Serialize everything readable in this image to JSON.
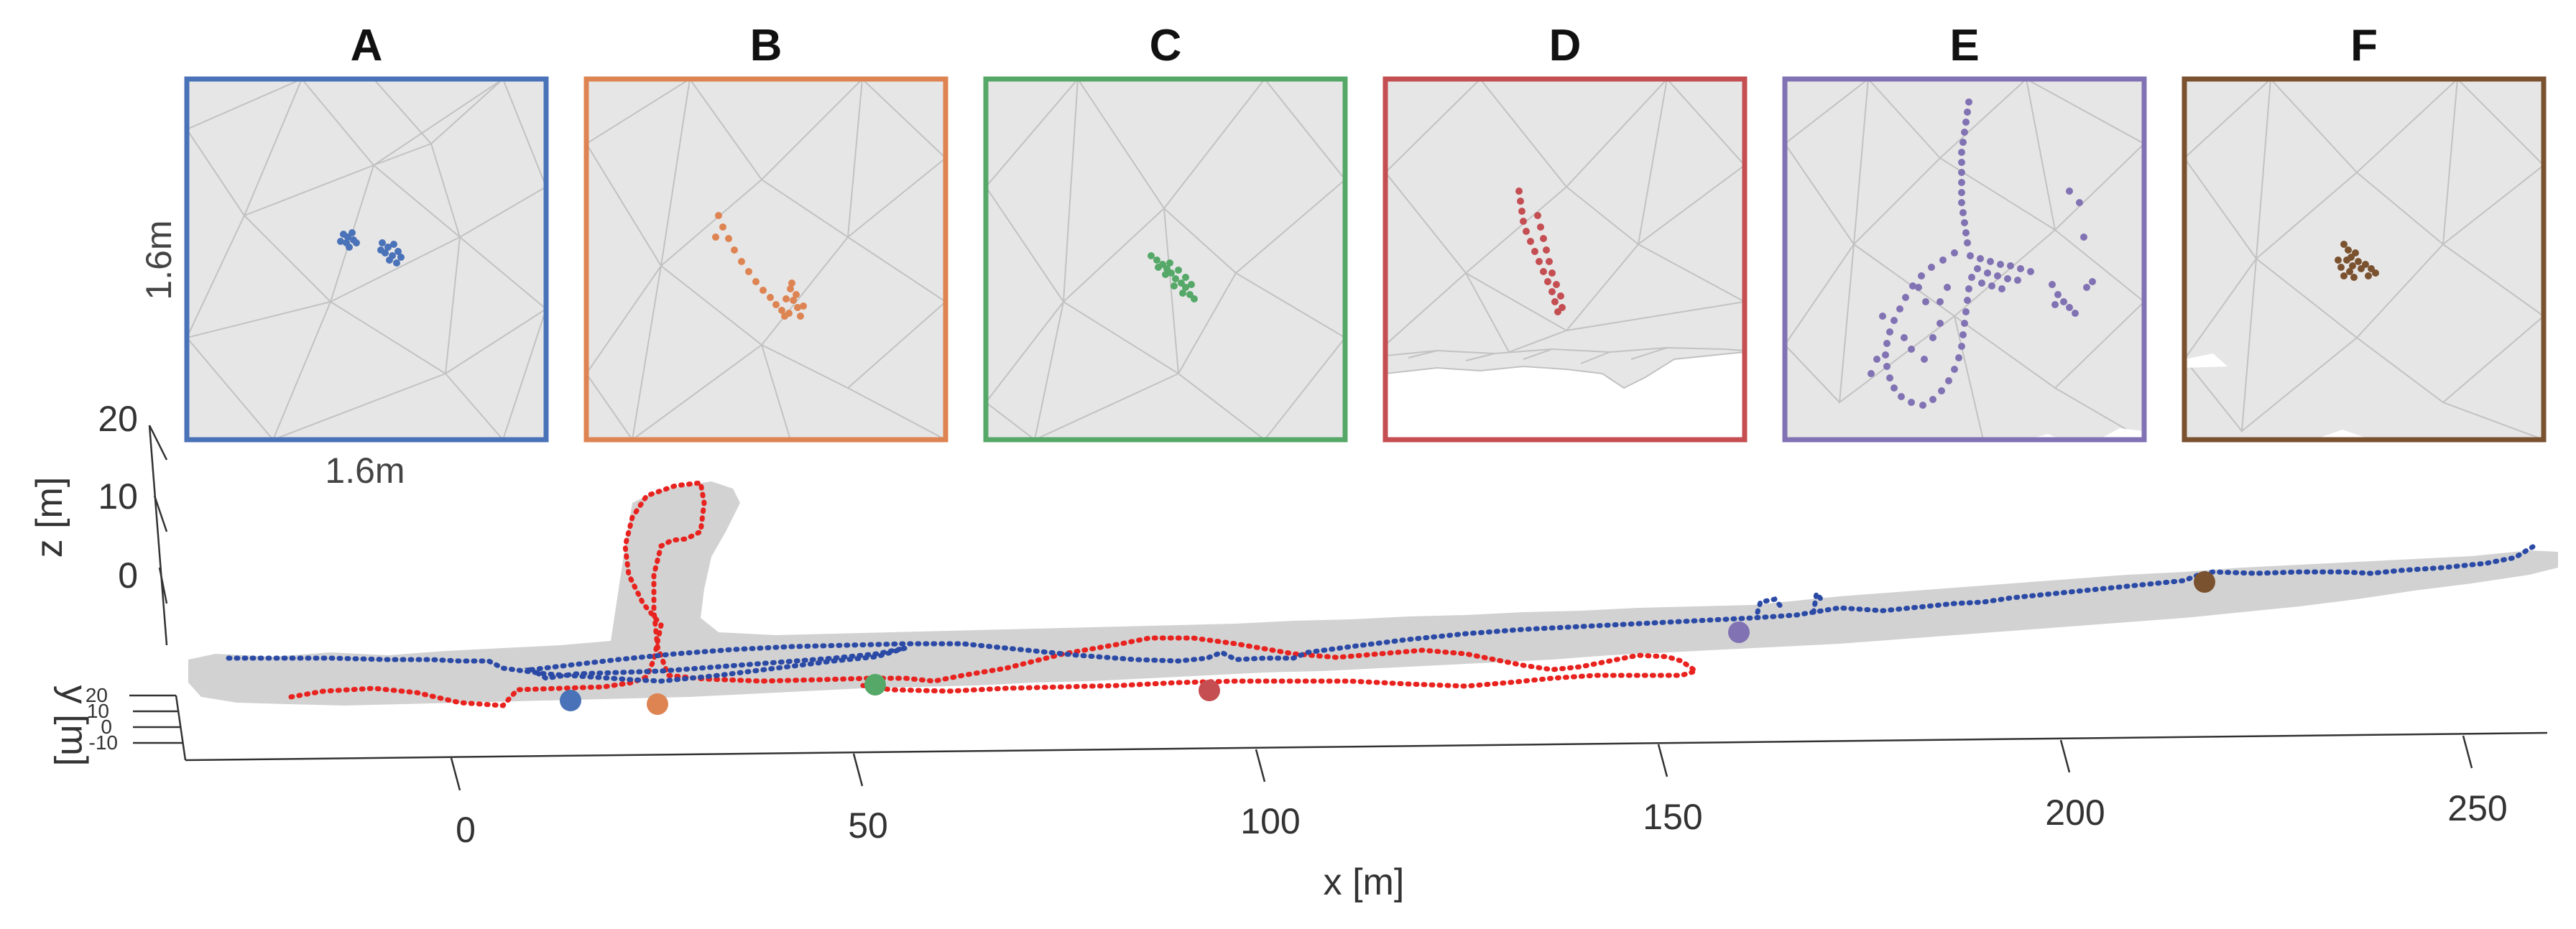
{
  "panels": [
    {
      "label": "A",
      "color": "#4a72b8"
    },
    {
      "label": "B",
      "color": "#dd8452"
    },
    {
      "label": "C",
      "color": "#55a868"
    },
    {
      "label": "D",
      "color": "#c44e52"
    },
    {
      "label": "E",
      "color": "#8172b3"
    },
    {
      "label": "F",
      "color": "#7b5230"
    }
  ],
  "scale": {
    "vertical": "1.6m",
    "horizontal": "1.6m"
  },
  "axes": {
    "x_label": "x [m]",
    "y_label": "y [m]",
    "z_label": "z [m]",
    "x_ticks": [
      "0",
      "50",
      "100",
      "150",
      "200",
      "250"
    ],
    "y_ticks": [
      "20",
      "10",
      "0",
      "-10"
    ],
    "z_ticks": [
      "20",
      "10",
      "0"
    ]
  },
  "trajectories": [
    {
      "name": "red",
      "color": "#e8231f"
    },
    {
      "name": "blue",
      "color": "#2b4aa6"
    }
  ],
  "mesh_color": "#d2d2d2"
}
